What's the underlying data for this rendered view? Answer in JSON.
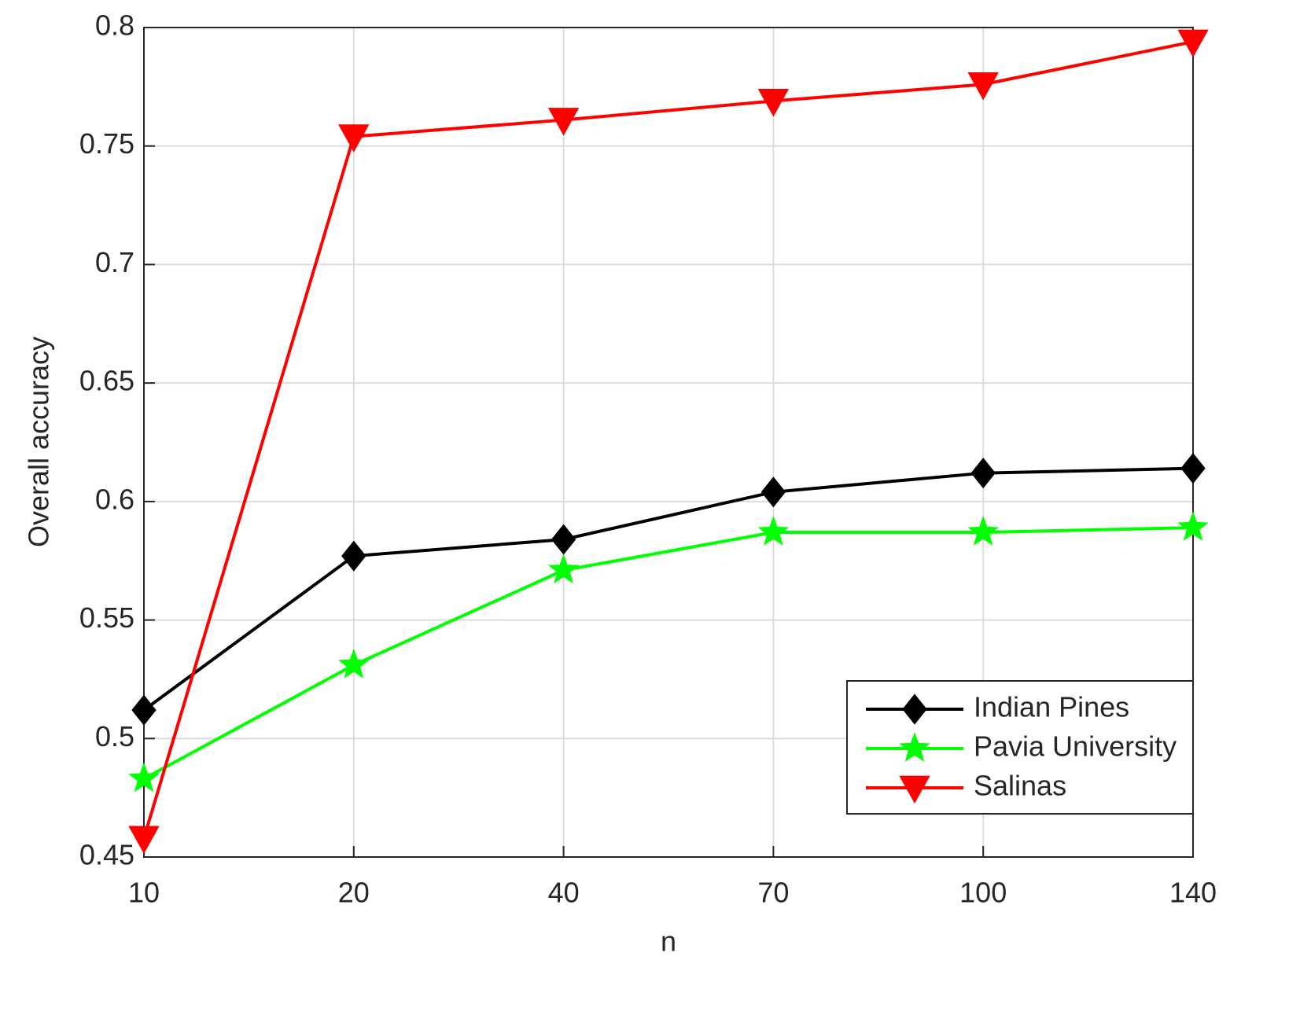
{
  "chart_data": {
    "type": "line",
    "xlabel": "n",
    "ylabel": "Overall accuracy",
    "categories": [
      "10",
      "20",
      "40",
      "70",
      "100",
      "140"
    ],
    "ylim": [
      0.45,
      0.8
    ],
    "yticks": [
      0.45,
      0.5,
      0.55,
      0.6,
      0.65,
      0.7,
      0.75,
      0.8
    ],
    "grid": true,
    "legend": "lower right",
    "series": [
      {
        "name": "Indian Pines",
        "color": "#000000",
        "marker": "diamond",
        "values": [
          0.512,
          0.577,
          0.584,
          0.604,
          0.612,
          0.614
        ]
      },
      {
        "name": "Pavia University",
        "color": "#00ff00",
        "marker": "star",
        "values": [
          0.483,
          0.531,
          0.571,
          0.587,
          0.587,
          0.589
        ]
      },
      {
        "name": "Salinas",
        "color": "#ff0000",
        "marker": "triangle-down",
        "values": [
          0.458,
          0.754,
          0.761,
          0.769,
          0.776,
          0.794
        ]
      }
    ]
  }
}
